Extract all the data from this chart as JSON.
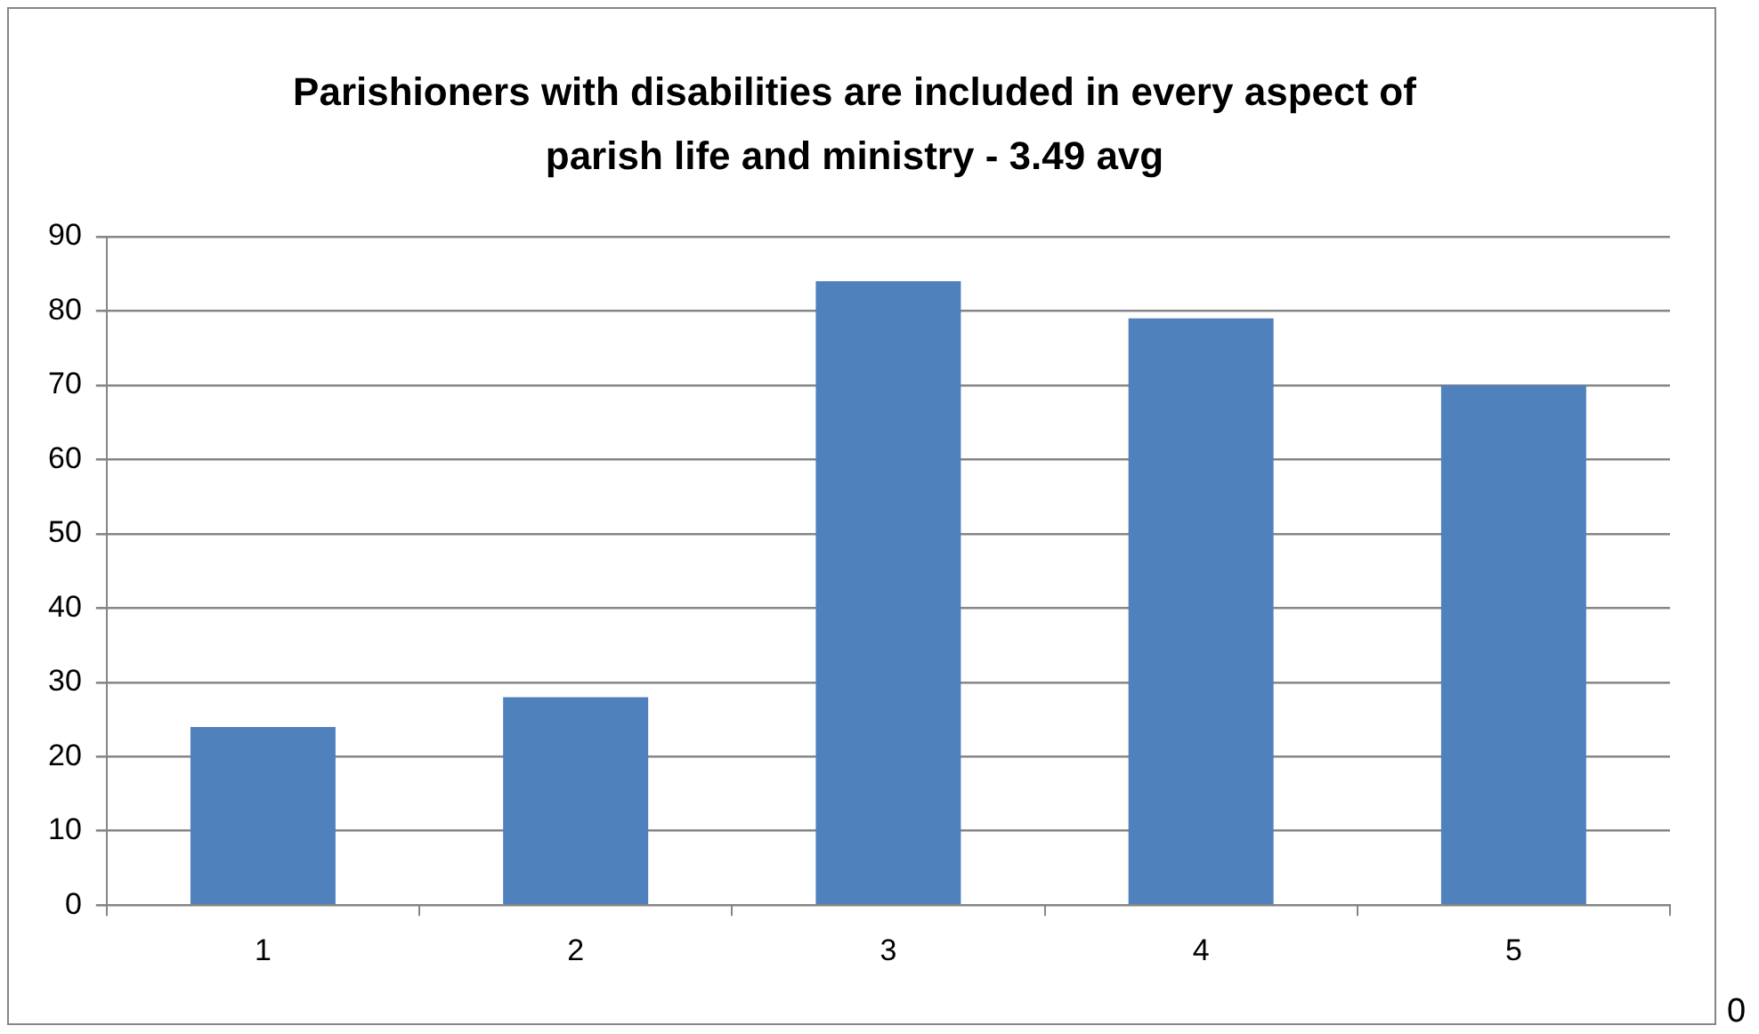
{
  "chart_data": {
    "type": "bar",
    "title": "Parishioners with disabilities are included in every aspect of parish life and ministry - 3.49 avg",
    "categories": [
      "1",
      "2",
      "3",
      "4",
      "5"
    ],
    "values": [
      24,
      28,
      84,
      79,
      70
    ],
    "color": "#4f81bd",
    "ylim": [
      0,
      90
    ],
    "yticks": [
      0,
      10,
      20,
      30,
      40,
      50,
      60,
      70,
      80,
      90
    ],
    "grid": "y",
    "legend": false,
    "annotations": [
      "0"
    ]
  }
}
